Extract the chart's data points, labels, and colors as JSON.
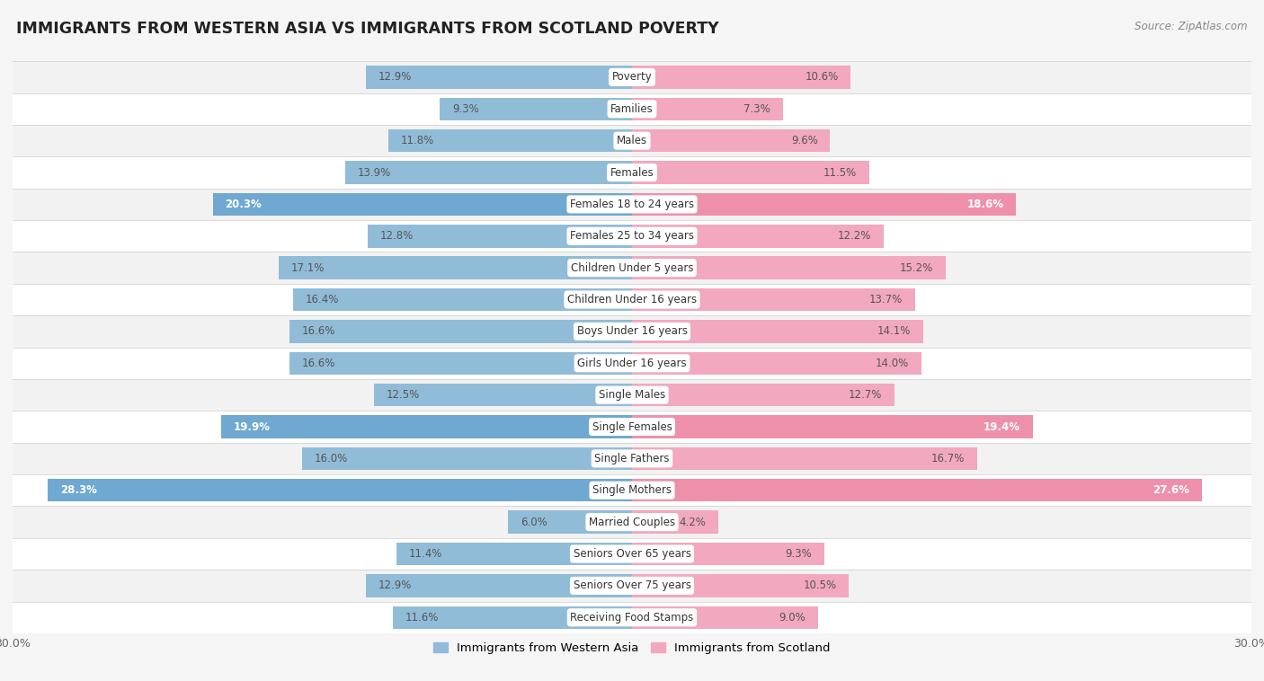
{
  "title": "IMMIGRANTS FROM WESTERN ASIA VS IMMIGRANTS FROM SCOTLAND POVERTY",
  "source": "Source: ZipAtlas.com",
  "categories": [
    "Poverty",
    "Families",
    "Males",
    "Females",
    "Females 18 to 24 years",
    "Females 25 to 34 years",
    "Children Under 5 years",
    "Children Under 16 years",
    "Boys Under 16 years",
    "Girls Under 16 years",
    "Single Males",
    "Single Females",
    "Single Fathers",
    "Single Mothers",
    "Married Couples",
    "Seniors Over 65 years",
    "Seniors Over 75 years",
    "Receiving Food Stamps"
  ],
  "western_asia": [
    12.9,
    9.3,
    11.8,
    13.9,
    20.3,
    12.8,
    17.1,
    16.4,
    16.6,
    16.6,
    12.5,
    19.9,
    16.0,
    28.3,
    6.0,
    11.4,
    12.9,
    11.6
  ],
  "scotland": [
    10.6,
    7.3,
    9.6,
    11.5,
    18.6,
    12.2,
    15.2,
    13.7,
    14.1,
    14.0,
    12.7,
    19.4,
    16.7,
    27.6,
    4.2,
    9.3,
    10.5,
    9.0
  ],
  "color_western_asia": "#91bcd8",
  "color_scotland": "#f2a8be",
  "color_western_asia_highlight": "#6fa8d0",
  "color_scotland_highlight": "#ef90aa",
  "highlight_rows": [
    4,
    11,
    13
  ],
  "xlim": 30.0,
  "bar_height": 0.72,
  "row_colors": [
    "#f2f2f2",
    "#ffffff"
  ],
  "legend_label_western": "Immigrants from Western Asia",
  "legend_label_scotland": "Immigrants from Scotland"
}
